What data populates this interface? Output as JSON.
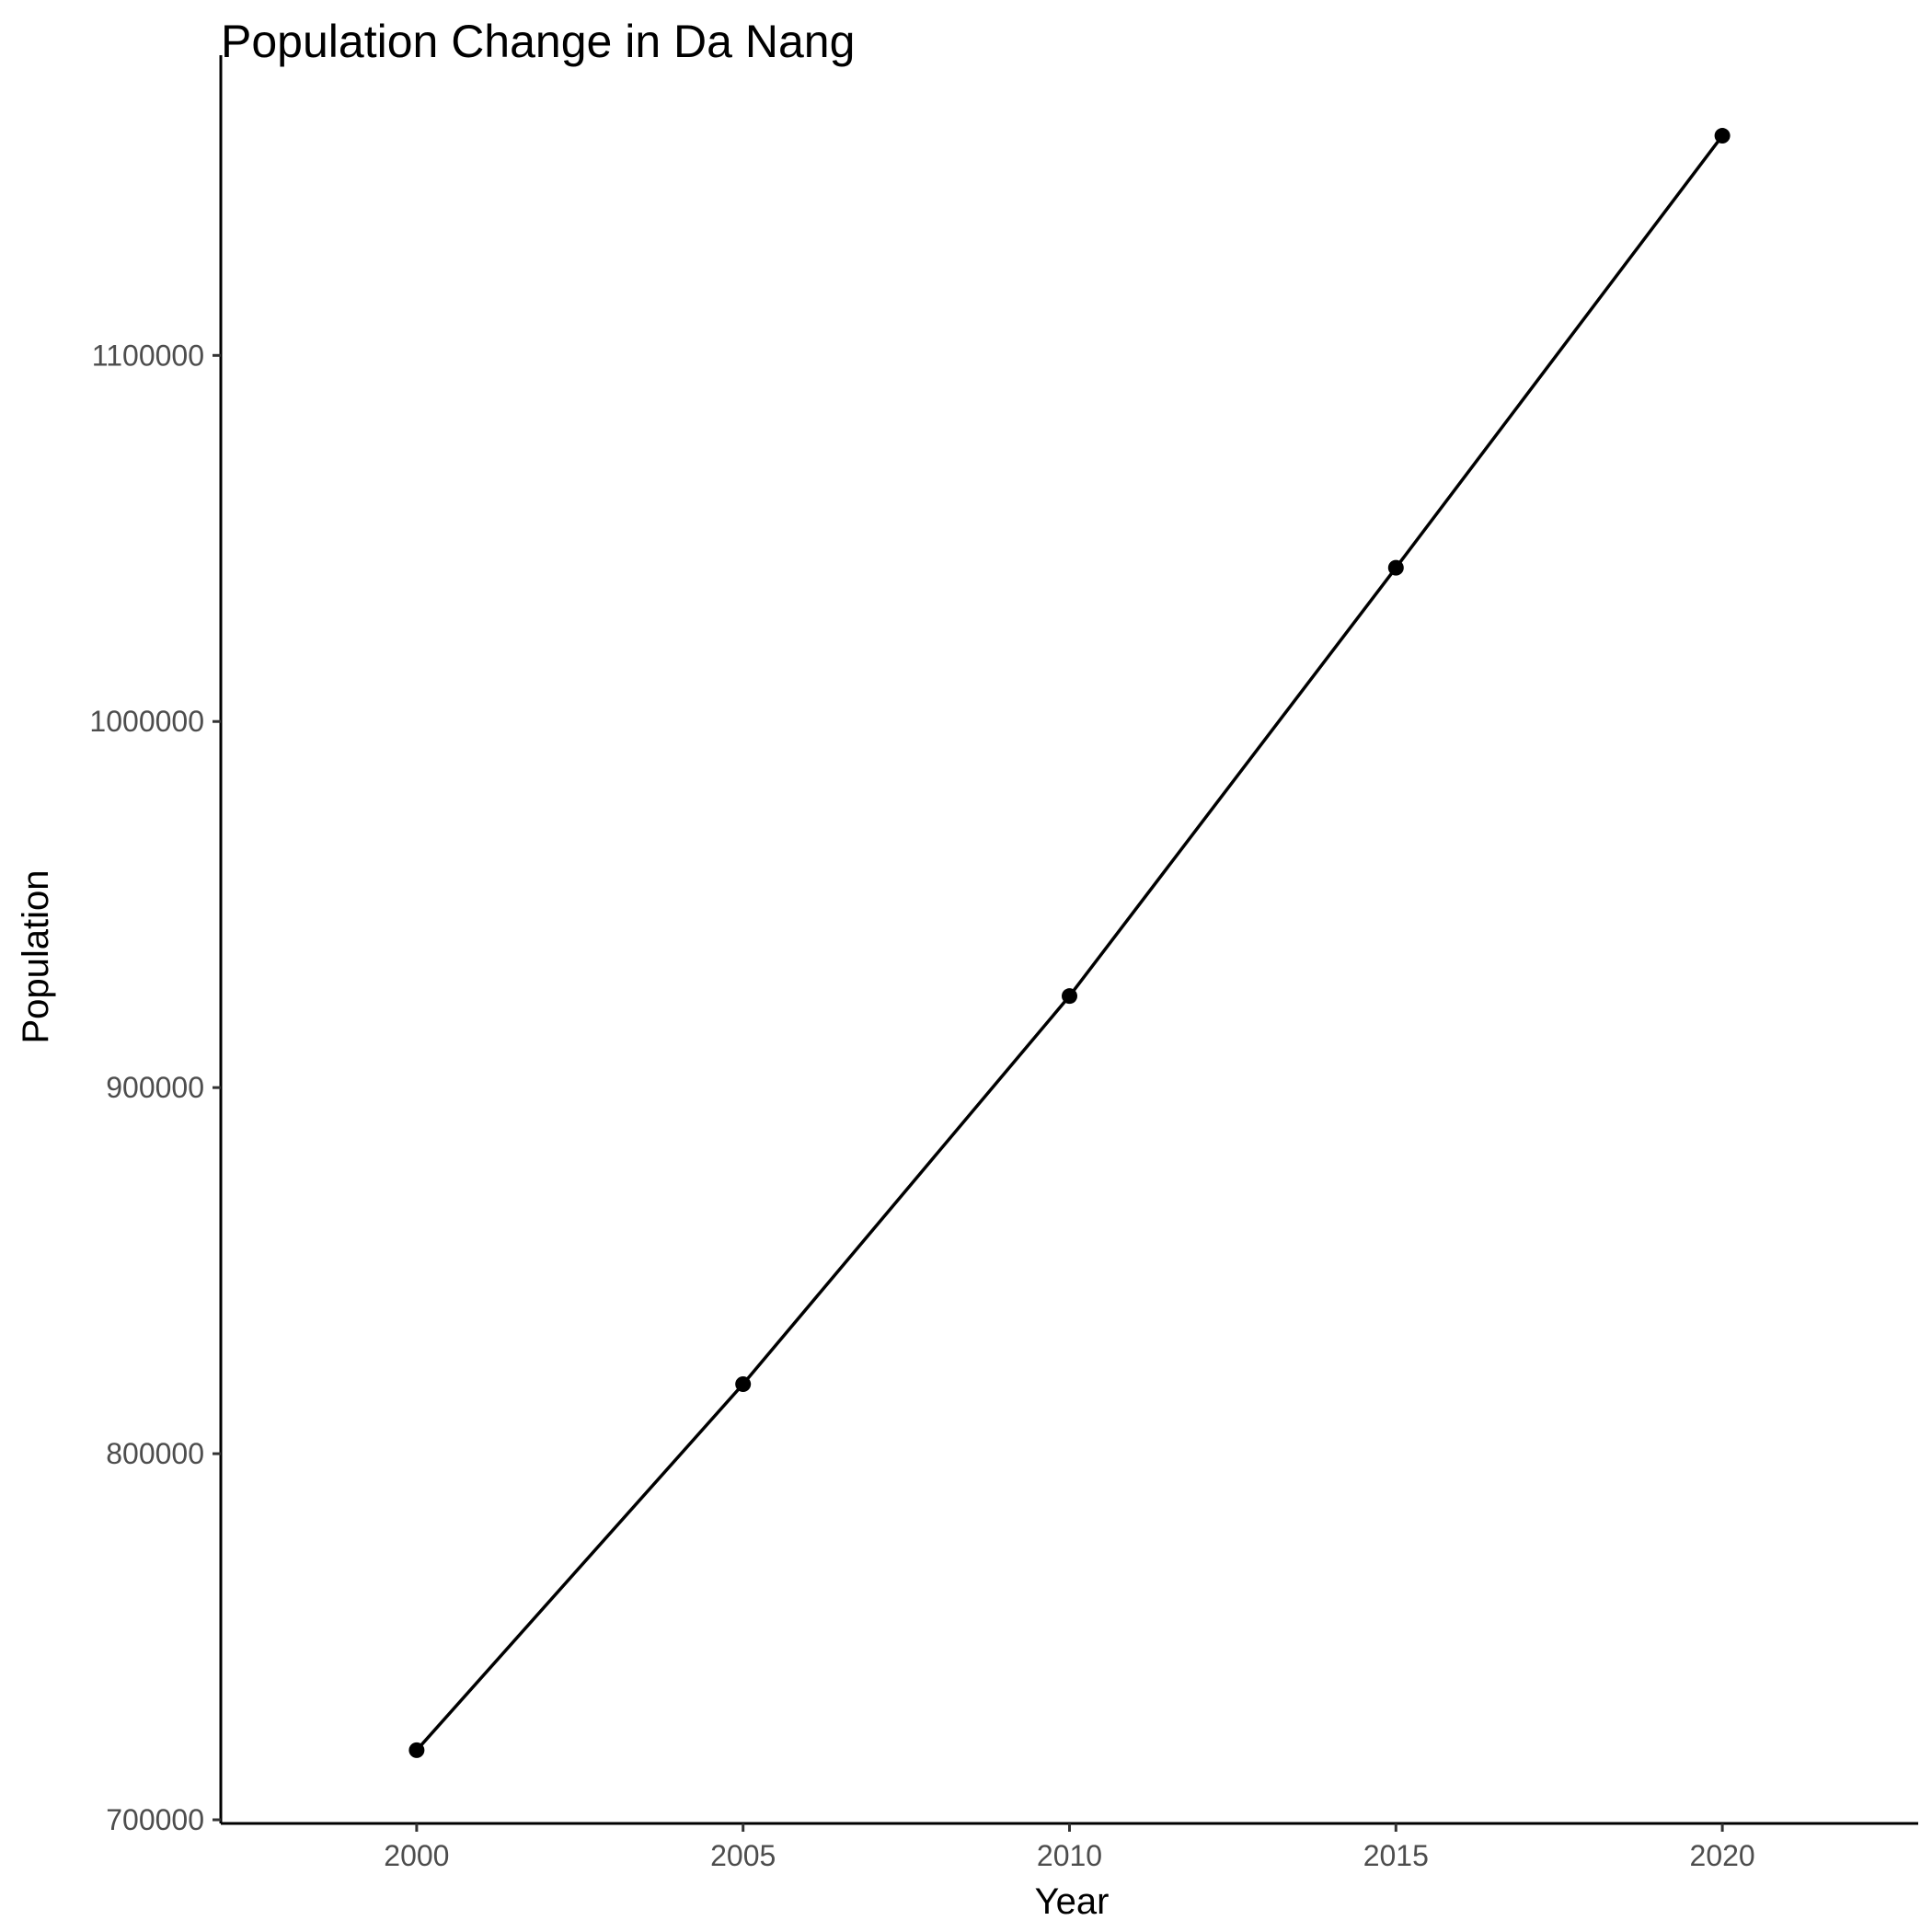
{
  "chart_data": {
    "type": "line",
    "title": "Population Change in Da Nang",
    "xlabel": "Year",
    "ylabel": "Population",
    "x": [
      2000,
      2005,
      2010,
      2015,
      2020
    ],
    "series": [
      {
        "values": [
          719000,
          819000,
          925000,
          1042000,
          1160000
        ]
      }
    ],
    "x_ticks": [
      2000,
      2005,
      2010,
      2015,
      2020
    ],
    "y_ticks": [
      700000,
      800000,
      900000,
      1000000,
      1100000
    ],
    "xlim": [
      1997,
      2023
    ],
    "ylim": [
      699000,
      1182000
    ],
    "grid": false,
    "legend": "none",
    "colors": {
      "line": "#000000",
      "point": "#000000",
      "tick_label": "#4d4d4d"
    }
  }
}
